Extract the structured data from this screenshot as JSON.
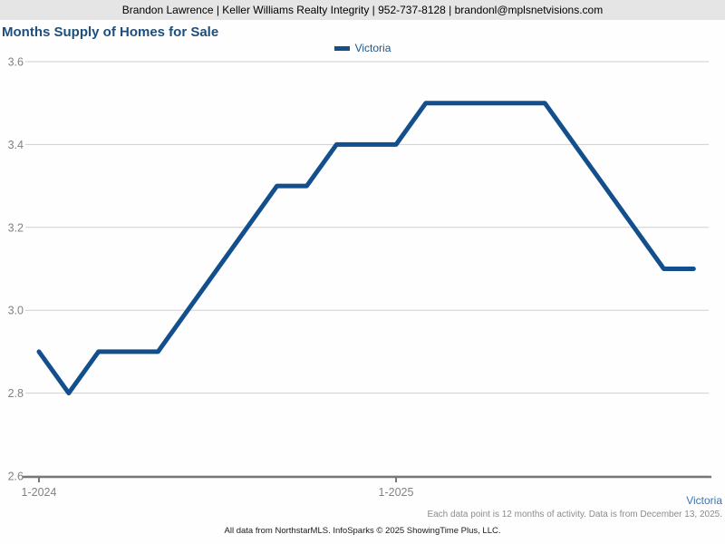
{
  "header": {
    "contact_line": "Brandon Lawrence | Keller Williams Realty Integrity | 952-737-8128 | brandonl@mplsnetvisions.com"
  },
  "title": "Months Supply of Homes for Sale",
  "legend": {
    "label": "Victoria"
  },
  "chart_data": {
    "type": "line",
    "title": "Months Supply of Homes for Sale",
    "categories": [
      "1-2024",
      "2-2024",
      "3-2024",
      "4-2024",
      "5-2024",
      "6-2024",
      "7-2024",
      "8-2024",
      "9-2024",
      "10-2024",
      "11-2024",
      "12-2024",
      "1-2025",
      "2-2025",
      "3-2025",
      "4-2025",
      "5-2025",
      "6-2025",
      "7-2025",
      "8-2025",
      "9-2025",
      "10-2025",
      "11-2025"
    ],
    "series": [
      {
        "name": "Victoria",
        "color": "#124f8c",
        "values": [
          2.9,
          2.8,
          2.9,
          2.9,
          2.9,
          3.0,
          3.1,
          3.2,
          3.3,
          3.3,
          3.4,
          3.4,
          3.4,
          3.5,
          3.5,
          3.5,
          3.5,
          3.5,
          3.4,
          3.3,
          3.2,
          3.1,
          3.1
        ]
      }
    ],
    "ylim": [
      2.6,
      3.6
    ],
    "yticks": [
      2.6,
      2.8,
      3.0,
      3.2,
      3.4,
      3.6
    ],
    "ytick_labels": [
      "2.6",
      "2.8",
      "3.0",
      "3.2",
      "3.4",
      "3.6"
    ],
    "xticks": [
      {
        "label": "1-2024",
        "month_index": 0
      },
      {
        "label": "1-2025",
        "month_index": 12
      }
    ],
    "grid": true,
    "legend_position": "top-center",
    "xlabel": "",
    "ylabel": ""
  },
  "footer": {
    "series_label": "Victoria",
    "note": "Each data point is 12 months of activity. Data is from December 13, 2025.",
    "attribution": "All data from NorthstarMLS. InfoSparks © 2025 ShowingTime Plus, LLC."
  },
  "colors": {
    "line_blue": "#124f8c",
    "title_blue": "#1d4e7c",
    "footer_link_blue": "#3d74ad",
    "header_bar_bg": "#e5e5e5",
    "gridline": "#cfcfcf",
    "axis": "#777777",
    "tick_label": "#828282"
  }
}
